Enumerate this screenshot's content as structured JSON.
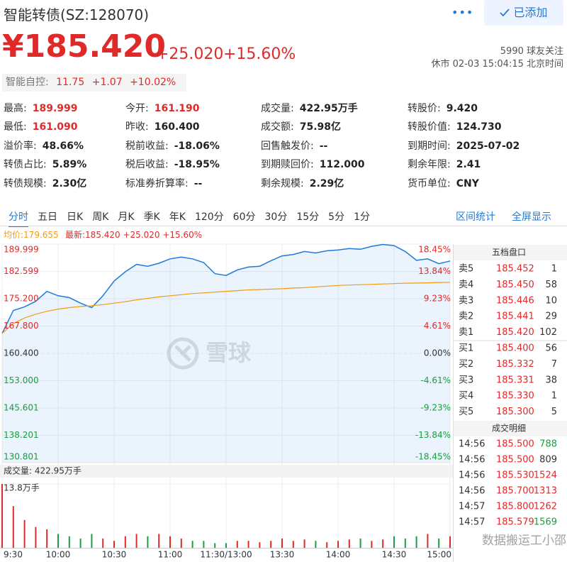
{
  "header": {
    "title": "智能转债(SZ:128070)",
    "button": "已添加",
    "followers": "5990 球友关注",
    "status": "休市 02-03 15:04:15 北京时间"
  },
  "quote": {
    "price": "¥185.420",
    "change": "+25.020",
    "percent": "+15.60%"
  },
  "underlying": {
    "name": "智能自控:",
    "price": "11.75",
    "change": "+1.07",
    "percent": "+10.02%"
  },
  "stats": [
    [
      {
        "label": "最高:",
        "value": "189.999",
        "color": "#e02a2a"
      },
      {
        "label": "今开:",
        "value": "161.190",
        "color": "#e02a2a"
      },
      {
        "label": "成交量:",
        "value": "422.95万手"
      },
      {
        "label": "转股价:",
        "value": "9.420"
      }
    ],
    [
      {
        "label": "最低:",
        "value": "161.090",
        "color": "#e02a2a"
      },
      {
        "label": "昨收:",
        "value": "160.400"
      },
      {
        "label": "成交额:",
        "value": "75.98亿"
      },
      {
        "label": "转股价值:",
        "value": "124.730"
      }
    ],
    [
      {
        "label": "溢价率:",
        "value": "48.66%"
      },
      {
        "label": "税前收益:",
        "value": "-18.06%"
      },
      {
        "label": "回售触发价:",
        "value": "--"
      },
      {
        "label": "到期时间:",
        "value": "2025-07-02"
      }
    ],
    [
      {
        "label": "转债占比:",
        "value": "5.89%"
      },
      {
        "label": "税后收益:",
        "value": "-18.95%"
      },
      {
        "label": "到期赎回价:",
        "value": "112.000"
      },
      {
        "label": "剩余年限:",
        "value": "2.41"
      }
    ],
    [
      {
        "label": "转债规模:",
        "value": "2.30亿"
      },
      {
        "label": "标准券折算率:",
        "value": "--"
      },
      {
        "label": "剩余规模:",
        "value": "2.29亿"
      },
      {
        "label": "货币单位:",
        "value": "CNY"
      }
    ]
  ],
  "tabs": [
    "分时",
    "五日",
    "日K",
    "周K",
    "月K",
    "季K",
    "年K",
    "120分",
    "60分",
    "30分",
    "15分",
    "5分",
    "1分"
  ],
  "active_tab": 0,
  "tools": [
    "区间统计",
    "全屏显示"
  ],
  "legend": {
    "avg": "均价:179.655",
    "latest": "最新:185.420 +25.020 +15.60%"
  },
  "chart_data": [
    {
      "type": "line",
      "x": [
        0,
        6,
        12,
        18,
        24,
        30,
        36,
        42,
        48,
        54,
        60,
        66,
        72,
        78,
        84,
        90,
        96,
        102,
        108,
        114,
        120,
        126,
        132,
        138,
        144,
        150,
        156,
        162,
        168,
        174,
        180,
        186,
        192,
        198,
        204,
        210,
        216,
        222,
        228,
        234,
        240
      ],
      "xlim": [
        0,
        240
      ],
      "ylim": [
        130.801,
        189.999
      ],
      "yticks": [
        189.999,
        182.599,
        {
          "value": 175.2,
          "label": "175.200"
        },
        {
          "value": 167.8,
          "label": "167.800"
        },
        {
          "value": 160.4,
          "label": "160.400"
        },
        {
          "value": 153,
          "label": "153.000"
        },
        145.601,
        138.201,
        130.801
      ],
      "y2lim": [
        -18.45,
        18.45
      ],
      "y2ticks": [
        {
          "value": 18.45,
          "label": "18.45%"
        },
        {
          "value": 13.84,
          "label": "13.84%"
        },
        {
          "value": 9.23,
          "label": "9.23%"
        },
        {
          "value": 4.61,
          "label": "4.61%"
        },
        {
          "value": 0,
          "label": "0.00%"
        },
        {
          "value": -4.61,
          "label": "-4.61%"
        },
        {
          "value": -9.23,
          "label": "-9.23%"
        },
        {
          "value": -13.84,
          "label": "-13.84%"
        },
        {
          "value": -18.45,
          "label": "-18.45%"
        }
      ],
      "up_color": "#e02a2a",
      "down_color": "#1a9e3f",
      "area": true,
      "grid": true,
      "series": [
        {
          "color": "#1f7ad9",
          "values": [
            165.8,
            172,
            173,
            174.5,
            177.2,
            176,
            175.5,
            174,
            172.8,
            176,
            180,
            182.5,
            184.5,
            184,
            184.8,
            186,
            186.5,
            186,
            185,
            182,
            181.5,
            183,
            183.8,
            184,
            185.5,
            186.8,
            187.2,
            188,
            187.6,
            188.2,
            188.4,
            188.8,
            188.6,
            189.4,
            189.9,
            189.6,
            188,
            185.6,
            186,
            184.7,
            185.42
          ]
        },
        {
          "color": "#f39c12",
          "values": [
            165.8,
            168.5,
            170,
            171,
            171.8,
            172.4,
            172.8,
            173.1,
            173.3,
            173.6,
            174,
            174.4,
            174.9,
            175.3,
            175.7,
            176,
            176.3,
            176.6,
            176.8,
            177,
            177.2,
            177.4,
            177.6,
            177.7,
            177.8,
            177.9,
            178.1,
            178.2,
            178.4,
            178.6,
            178.8,
            178.9,
            179,
            179.1,
            179.2,
            179.3,
            179.4,
            179.45,
            179.5,
            179.6,
            179.655
          ]
        }
      ]
    },
    {
      "type": "bar",
      "title": "成交量: 422.95万手",
      "x": [
        0,
        6,
        12,
        18,
        24,
        30,
        36,
        42,
        48,
        54,
        60,
        66,
        72,
        78,
        84,
        90,
        96,
        102,
        108,
        114,
        120,
        126,
        132,
        138,
        144,
        150,
        156,
        162,
        168,
        174,
        180,
        186,
        192,
        198,
        204,
        210,
        216,
        222,
        228,
        234,
        240
      ],
      "xlim": [
        0,
        240
      ],
      "ylim": [
        0,
        13.8
      ],
      "yticks": [
        {
          "value": 13.8,
          "label": "13.8万手"
        }
      ],
      "xticks": [
        {
          "value": 0,
          "label": "9:30"
        },
        {
          "value": 30,
          "label": "10:00"
        },
        {
          "value": 60,
          "label": "10:30"
        },
        {
          "value": 90,
          "label": "11:00"
        },
        {
          "value": 120,
          "label": "11:30/13:00"
        },
        {
          "value": 150,
          "label": "13:30"
        },
        {
          "value": 180,
          "label": "14:00"
        },
        {
          "value": 210,
          "label": "14:30"
        },
        {
          "value": 240,
          "label": "15:00"
        }
      ],
      "values": [
        13.8,
        9,
        6,
        4.5,
        4,
        3,
        2.5,
        2,
        3,
        2,
        1.5,
        2.5,
        3,
        2.5,
        3,
        2.5,
        2,
        1.5,
        1.5,
        1,
        1,
        1.5,
        1.5,
        1.2,
        1.5,
        2,
        1.5,
        1.8,
        1.5,
        1.2,
        1.5,
        1.8,
        2,
        1.5,
        1.8,
        2.5,
        2,
        2.5,
        3,
        2,
        2.5
      ]
    }
  ],
  "order_book": {
    "title": "五档盘口",
    "rows": [
      {
        "label": "卖5",
        "price": "185.452",
        "volume": "1"
      },
      {
        "label": "卖4",
        "price": "185.450",
        "volume": "58"
      },
      {
        "label": "卖3",
        "price": "185.446",
        "volume": "10"
      },
      {
        "label": "卖2",
        "price": "185.441",
        "volume": "29"
      },
      {
        "label": "卖1",
        "price": "185.420",
        "volume": "102"
      },
      {
        "label": "买1",
        "price": "185.400",
        "volume": "56"
      },
      {
        "label": "买2",
        "price": "185.332",
        "volume": "7"
      },
      {
        "label": "买3",
        "price": "185.331",
        "volume": "38"
      },
      {
        "label": "买4",
        "price": "185.330",
        "volume": "1"
      },
      {
        "label": "买5",
        "price": "185.300",
        "volume": "5"
      }
    ]
  },
  "trades": {
    "title": "成交明细",
    "rows": [
      {
        "time": "14:56",
        "price": "185.500",
        "volume": "788",
        "color": "#1a9e3f"
      },
      {
        "time": "14:56",
        "price": "185.500",
        "volume": "809",
        "color": "#333333"
      },
      {
        "time": "14:56",
        "price": "185.530",
        "volume": "1524",
        "color": "#e02a2a"
      },
      {
        "time": "14:56",
        "price": "185.700",
        "volume": "1313",
        "color": "#e02a2a"
      },
      {
        "time": "14:57",
        "price": "185.800",
        "volume": "1262",
        "color": "#e02a2a"
      },
      {
        "time": "14:57",
        "price": "185.579",
        "volume": "1569",
        "color": "#1a9e3f"
      }
    ]
  },
  "watermarks": [
    "雪球",
    "数据搬运工小邵"
  ]
}
